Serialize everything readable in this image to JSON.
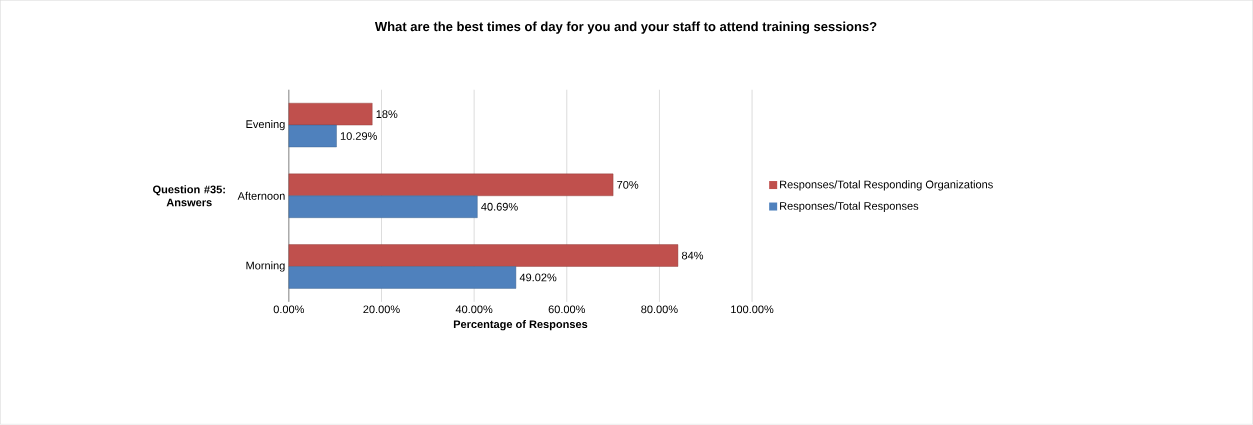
{
  "chart_data": {
    "type": "bar",
    "orientation": "horizontal",
    "title": "What are the best times of day for you and your staff to attend training sessions?",
    "xlabel": "Percentage of Responses",
    "ylabel": "Question #35: Answers",
    "categories": [
      "Evening",
      "Afternoon",
      "Morning"
    ],
    "series": [
      {
        "name": "Responses/Total Responding Organizations",
        "color": "#c0504d",
        "values": [
          18,
          70,
          84
        ],
        "value_labels": [
          "18%",
          "70%",
          "84%"
        ]
      },
      {
        "name": "Responses/Total Responses",
        "color": "#4f81bd",
        "values": [
          10.29,
          40.69,
          49.02
        ],
        "value_labels": [
          "10.29%",
          "40.69%",
          "49.02%"
        ]
      }
    ],
    "xlim": [
      0,
      100
    ],
    "xticks": [
      {
        "value": 0,
        "label": "0.00%"
      },
      {
        "value": 20,
        "label": "20.00%"
      },
      {
        "value": 40,
        "label": "40.00%"
      },
      {
        "value": 60,
        "label": "60.00%"
      },
      {
        "value": 80,
        "label": "80.00%"
      },
      {
        "value": 100,
        "label": "100.00%"
      }
    ],
    "grid": "x",
    "legend": "right"
  }
}
